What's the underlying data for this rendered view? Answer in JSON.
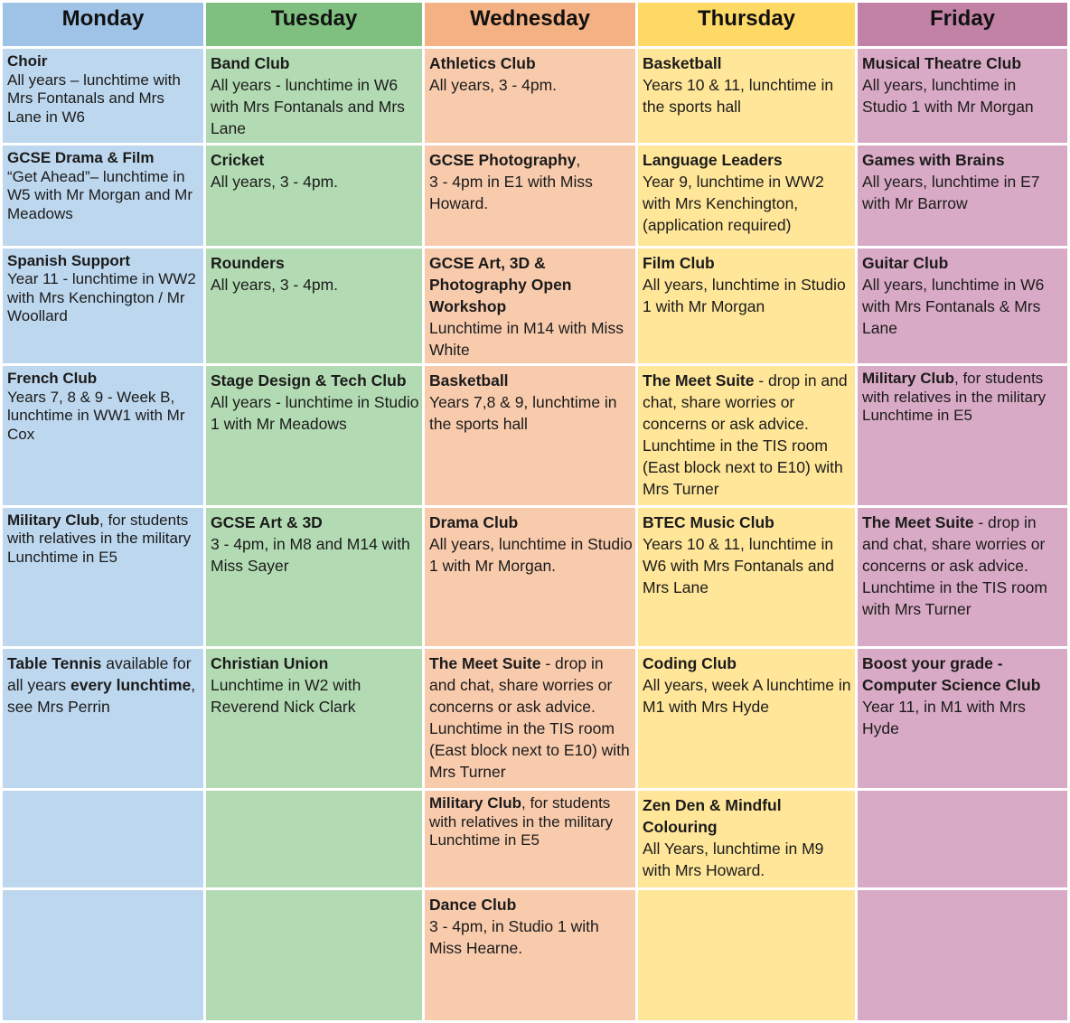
{
  "colors": {
    "monday_header": "#9fc3e6",
    "monday_cell": "#bdd7ee",
    "tuesday_header": "#7fbf7f",
    "tuesday_cell": "#b3dbb3",
    "wednesday_header": "#f4b183",
    "wednesday_cell": "#f8cbad",
    "thursday_header": "#ffd966",
    "thursday_cell": "#ffe699",
    "friday_header": "#c282a6",
    "friday_cell": "#d9aac5"
  },
  "days": [
    "Monday",
    "Tuesday",
    "Wednesday",
    "Thursday",
    "Friday"
  ],
  "rows": [
    {
      "monday": {
        "title": "Choir",
        "desc": "All years  – lunchtime with Mrs Fontanals and Mrs Lane in W6"
      },
      "tuesday": {
        "title": "Band Club",
        "desc": "All years - lunchtime in W6 with Mrs Fontanals and Mrs Lane"
      },
      "wednesday": {
        "title": "Athletics Club",
        "desc": "All years, 3 - 4pm."
      },
      "thursday": {
        "title": "Basketball",
        "desc": "Years 10 & 11, lunchtime in the sports hall"
      },
      "friday": {
        "title": "Musical Theatre Club",
        "desc": "All years, lunchtime in Studio 1 with Mr Morgan"
      }
    },
    {
      "monday": {
        "title": "GCSE Drama & Film",
        "desc": "“Get Ahead”– lunchtime in W5 with Mr Morgan and Mr Meadows"
      },
      "tuesday": {
        "title": "Cricket",
        "desc": "All years, 3 - 4pm."
      },
      "wednesday": {
        "title": "GCSE Photography",
        "title_suffix": ",",
        "desc": "3 - 4pm in E1 with Miss Howard."
      },
      "thursday": {
        "title": "Language Leaders",
        "desc": "Year 9, lunchtime in WW2 with Mrs Kenchington, (application required)"
      },
      "friday": {
        "title": "Games with Brains",
        "desc": "All years, lunchtime in E7 with Mr Barrow"
      }
    },
    {
      "monday": {
        "title": "Spanish Support",
        "desc": "Year 11 - lunchtime in WW2 with Mrs Kenchington / Mr Woollard"
      },
      "tuesday": {
        "title": "Rounders",
        "desc": "All years, 3 - 4pm."
      },
      "wednesday": {
        "title": "GCSE Art, 3D & Photography Open Workshop",
        "desc": "Lunchtime in M14 with Miss White"
      },
      "thursday": {
        "title": "Film Club",
        "desc": "All years, lunchtime in Studio 1 with Mr Morgan"
      },
      "friday": {
        "title": "Guitar Club",
        "desc": "All years, lunchtime in W6 with Mrs Fontanals & Mrs Lane"
      }
    },
    {
      "monday": {
        "title": "French Club",
        "desc": "Years 7, 8 & 9 - Week B, lunchtime in WW1 with Mr Cox"
      },
      "tuesday": {
        "title": "Stage Design & Tech Club",
        "desc": "All years - lunchtime in Studio 1 with Mr Meadows"
      },
      "wednesday": {
        "title": "Basketball",
        "desc": "Years 7,8 & 9, lunchtime in the sports hall"
      },
      "thursday": {
        "title": "The Meet Suite",
        "title_suffix": " - drop in and chat, share worries or concerns or ask advice.",
        "desc": "Lunchtime in the TIS room (East block next to E10) with Mrs Turner"
      },
      "friday": {
        "title": "Military Club",
        "title_suffix": ", for students with relatives in the military",
        "desc": "Lunchtime in E5"
      }
    },
    {
      "monday": {
        "title": "Military Club",
        "title_suffix": ", for students with relatives in the military",
        "desc": "Lunchtime in E5"
      },
      "tuesday": {
        "title": "GCSE Art & 3D",
        "desc": "3 - 4pm, in M8 and M14 with Miss Sayer"
      },
      "wednesday": {
        "title": "Drama Club",
        "desc": "All years, lunchtime in Studio 1 with Mr Morgan."
      },
      "thursday": {
        "title": "BTEC Music Club",
        "desc": "Years 10 & 11, lunchtime in W6 with Mrs Fontanals and Mrs Lane"
      },
      "friday": {
        "title": "The Meet Suite",
        "title_suffix": " - drop in and chat, share worries or concerns or ask advice.",
        "desc": "Lunchtime in the TIS room with Mrs Turner"
      }
    },
    {
      "monday": {
        "title": "Table Tennis",
        "title_suffix": " available for all years ",
        "title2": "every lunchtime",
        "desc": ", see Mrs Perrin"
      },
      "tuesday": {
        "title": "Christian Union",
        "desc": "Lunchtime in W2 with Reverend Nick Clark"
      },
      "wednesday": {
        "title": "The Meet Suite",
        "title_suffix": " - drop in and chat, share worries or concerns or ask advice.",
        "desc": "Lunchtime in the TIS room (East block next to E10) with Mrs Turner"
      },
      "thursday": {
        "title": "Coding Club",
        "desc": "All years, week A lunchtime in M1 with Mrs Hyde"
      },
      "friday": {
        "title": "Boost your grade - Computer Science Club",
        "desc": "Year 11, in M1 with Mrs Hyde"
      }
    },
    {
      "wednesday": {
        "title": "Military Club",
        "title_suffix": ", for students with relatives in the military",
        "desc": "Lunchtime in E5"
      },
      "thursday": {
        "title": "Zen Den & Mindful Colouring",
        "desc": "All Years, lunchtime in M9 with Mrs Howard."
      }
    },
    {
      "wednesday": {
        "title": "Dance Club",
        "desc": "3 - 4pm, in Studio 1 with Miss Hearne."
      }
    }
  ]
}
